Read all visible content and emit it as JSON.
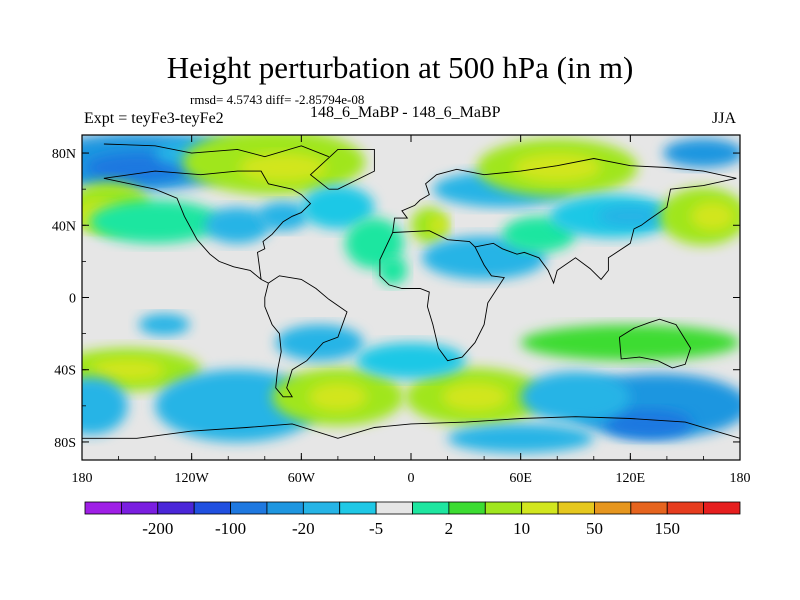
{
  "header": {
    "title": "Height perturbation at 500 hPa (in m)",
    "stats": "rmsd= 4.5743 diff= -2.85794e-08",
    "left_label": "Expt = teyFe3-teyFe2",
    "center_label": "148_6_MaBP - 148_6_MaBP",
    "right_label": "JJA"
  },
  "chart_data": {
    "type": "heatmap",
    "title": "Height perturbation at 500 hPa (in m)",
    "xlim": [
      -180,
      180
    ],
    "ylim": [
      -90,
      90
    ],
    "x_ticks": [
      {
        "value": -180,
        "label": "180"
      },
      {
        "value": -120,
        "label": "120W"
      },
      {
        "value": -60,
        "label": "60W"
      },
      {
        "value": 0,
        "label": "0"
      },
      {
        "value": 60,
        "label": "60E"
      },
      {
        "value": 120,
        "label": "120E"
      },
      {
        "value": 180,
        "label": "180"
      }
    ],
    "y_ticks": [
      {
        "value": 80,
        "label": "80N"
      },
      {
        "value": 40,
        "label": "40N"
      },
      {
        "value": 0,
        "label": "0"
      },
      {
        "value": -40,
        "label": "40S"
      },
      {
        "value": -80,
        "label": "80S"
      }
    ],
    "colorbar": {
      "colors": [
        "#9f1fe6",
        "#7a1ee0",
        "#4a26d8",
        "#2050e0",
        "#1e78e0",
        "#1e96e0",
        "#26b4e6",
        "#1fc8e6",
        "#e6e6e6",
        "#1ee6a0",
        "#3cdc32",
        "#a0e61e",
        "#d2e61e",
        "#e6c81e",
        "#e6961e",
        "#e6641e",
        "#e63c1e",
        "#e61e1e"
      ],
      "labels": [
        {
          "after_index": 1,
          "label": "-200"
        },
        {
          "after_index": 3,
          "label": "-100"
        },
        {
          "after_index": 5,
          "label": "-20"
        },
        {
          "after_index": 7,
          "label": "-5"
        },
        {
          "after_index": 9,
          "label": "2"
        },
        {
          "after_index": 11,
          "label": "10"
        },
        {
          "after_index": 13,
          "label": "50"
        },
        {
          "after_index": 15,
          "label": "150"
        }
      ]
    },
    "regions": [
      {
        "lon": -150,
        "lat": 75,
        "w": 55,
        "h": 16,
        "level": 5
      },
      {
        "lon": -150,
        "lat": 72,
        "w": 28,
        "h": 8,
        "level": 4
      },
      {
        "lon": -115,
        "lat": 80,
        "w": 25,
        "h": 8,
        "level": 6
      },
      {
        "lon": -165,
        "lat": 50,
        "w": 22,
        "h": 14,
        "level": 11
      },
      {
        "lon": -170,
        "lat": 45,
        "w": 14,
        "h": 8,
        "level": 12
      },
      {
        "lon": -140,
        "lat": 42,
        "w": 36,
        "h": 12,
        "level": 9
      },
      {
        "lon": -75,
        "lat": 75,
        "w": 50,
        "h": 18,
        "level": 11
      },
      {
        "lon": -70,
        "lat": 72,
        "w": 24,
        "h": 8,
        "level": 12
      },
      {
        "lon": -95,
        "lat": 40,
        "w": 18,
        "h": 10,
        "level": 6
      },
      {
        "lon": -70,
        "lat": 45,
        "w": 14,
        "h": 8,
        "level": 6
      },
      {
        "lon": -40,
        "lat": 50,
        "w": 20,
        "h": 12,
        "level": 7
      },
      {
        "lon": -20,
        "lat": 30,
        "w": 16,
        "h": 14,
        "level": 9
      },
      {
        "lon": -10,
        "lat": 15,
        "w": 8,
        "h": 8,
        "level": 9
      },
      {
        "lon": 10,
        "lat": 40,
        "w": 10,
        "h": 10,
        "level": 11
      },
      {
        "lon": 15,
        "lat": 40,
        "w": 5,
        "h": 5,
        "level": 12
      },
      {
        "lon": 40,
        "lat": 22,
        "w": 34,
        "h": 12,
        "level": 6
      },
      {
        "lon": 70,
        "lat": 35,
        "w": 20,
        "h": 10,
        "level": 9
      },
      {
        "lon": 50,
        "lat": 60,
        "w": 38,
        "h": 10,
        "level": 6
      },
      {
        "lon": 80,
        "lat": 72,
        "w": 44,
        "h": 16,
        "level": 11
      },
      {
        "lon": 80,
        "lat": 72,
        "w": 24,
        "h": 8,
        "level": 12
      },
      {
        "lon": 110,
        "lat": 45,
        "w": 34,
        "h": 12,
        "level": 7
      },
      {
        "lon": 120,
        "lat": 45,
        "w": 18,
        "h": 6,
        "level": 6
      },
      {
        "lon": 160,
        "lat": 45,
        "w": 24,
        "h": 16,
        "level": 11
      },
      {
        "lon": 165,
        "lat": 45,
        "w": 12,
        "h": 8,
        "level": 12
      },
      {
        "lon": 160,
        "lat": 80,
        "w": 22,
        "h": 8,
        "level": 5
      },
      {
        "lon": -155,
        "lat": -40,
        "w": 40,
        "h": 12,
        "level": 11
      },
      {
        "lon": -155,
        "lat": -40,
        "w": 20,
        "h": 6,
        "level": 12
      },
      {
        "lon": -175,
        "lat": -60,
        "w": 20,
        "h": 16,
        "level": 6
      },
      {
        "lon": -135,
        "lat": -15,
        "w": 14,
        "h": 6,
        "level": 6
      },
      {
        "lon": -95,
        "lat": -60,
        "w": 45,
        "h": 20,
        "level": 6
      },
      {
        "lon": -40,
        "lat": -55,
        "w": 36,
        "h": 16,
        "level": 11
      },
      {
        "lon": -40,
        "lat": -55,
        "w": 16,
        "h": 8,
        "level": 12
      },
      {
        "lon": -50,
        "lat": -25,
        "w": 24,
        "h": 10,
        "level": 6
      },
      {
        "lon": 35,
        "lat": -55,
        "w": 38,
        "h": 16,
        "level": 11
      },
      {
        "lon": 35,
        "lat": -55,
        "w": 18,
        "h": 8,
        "level": 12
      },
      {
        "lon": 0,
        "lat": -35,
        "w": 30,
        "h": 10,
        "level": 7
      },
      {
        "lon": 120,
        "lat": -25,
        "w": 60,
        "h": 10,
        "level": 10
      },
      {
        "lon": 135,
        "lat": -60,
        "w": 50,
        "h": 18,
        "level": 5
      },
      {
        "lon": 130,
        "lat": -70,
        "w": 24,
        "h": 8,
        "level": 4
      },
      {
        "lon": 90,
        "lat": -55,
        "w": 30,
        "h": 14,
        "level": 6
      },
      {
        "lon": 60,
        "lat": -78,
        "w": 40,
        "h": 8,
        "level": 6
      }
    ],
    "outlines": [
      [
        [
          -168,
          85
        ],
        [
          -140,
          84
        ],
        [
          -120,
          80
        ],
        [
          -95,
          82
        ],
        [
          -80,
          78
        ],
        [
          -60,
          84
        ],
        [
          -45,
          78
        ]
      ],
      [
        [
          -168,
          66
        ],
        [
          -140,
          60
        ],
        [
          -128,
          55
        ],
        [
          -124,
          45
        ],
        [
          -117,
          32
        ],
        [
          -110,
          24
        ],
        [
          -105,
          20
        ],
        [
          -97,
          17
        ],
        [
          -88,
          15
        ],
        [
          -82,
          10
        ],
        [
          -78,
          8
        ]
      ],
      [
        [
          -78,
          8
        ],
        [
          -80,
          0
        ],
        [
          -80,
          -5
        ],
        [
          -76,
          -15
        ],
        [
          -72,
          -20
        ],
        [
          -71,
          -30
        ],
        [
          -73,
          -40
        ],
        [
          -74,
          -50
        ],
        [
          -70,
          -55
        ],
        [
          -65,
          -55
        ],
        [
          -68,
          -50
        ],
        [
          -65,
          -40
        ],
        [
          -57,
          -35
        ],
        [
          -48,
          -25
        ],
        [
          -40,
          -22
        ],
        [
          -35,
          -8
        ],
        [
          -45,
          -1
        ],
        [
          -52,
          5
        ],
        [
          -60,
          10
        ],
        [
          -72,
          12
        ],
        [
          -78,
          8
        ]
      ],
      [
        [
          -82,
          10
        ],
        [
          -84,
          25
        ],
        [
          -80,
          27
        ],
        [
          -81,
          31
        ],
        [
          -76,
          35
        ],
        [
          -70,
          42
        ],
        [
          -65,
          45
        ],
        [
          -60,
          47
        ],
        [
          -55,
          52
        ],
        [
          -60,
          57
        ],
        [
          -65,
          60
        ],
        [
          -78,
          63
        ],
        [
          -82,
          70
        ],
        [
          -95,
          70
        ],
        [
          -115,
          68
        ],
        [
          -140,
          70
        ],
        [
          -168,
          66
        ]
      ],
      [
        [
          -10,
          36
        ],
        [
          -9,
          44
        ],
        [
          -2,
          44
        ],
        [
          -5,
          48
        ],
        [
          2,
          51
        ],
        [
          5,
          54
        ],
        [
          10,
          57
        ],
        [
          8,
          63
        ],
        [
          14,
          68
        ],
        [
          25,
          71
        ],
        [
          40,
          68
        ],
        [
          60,
          70
        ],
        [
          80,
          73
        ],
        [
          100,
          77
        ],
        [
          120,
          73
        ],
        [
          140,
          72
        ],
        [
          160,
          70
        ],
        [
          178,
          66
        ]
      ],
      [
        [
          -10,
          36
        ],
        [
          -17,
          21
        ],
        [
          -17,
          12
        ],
        [
          -12,
          7
        ],
        [
          -5,
          5
        ],
        [
          5,
          5
        ],
        [
          10,
          3
        ],
        [
          9,
          -5
        ],
        [
          12,
          -15
        ],
        [
          15,
          -28
        ],
        [
          20,
          -35
        ],
        [
          28,
          -33
        ],
        [
          35,
          -25
        ],
        [
          40,
          -15
        ],
        [
          42,
          -3
        ],
        [
          51,
          11
        ],
        [
          44,
          12
        ],
        [
          40,
          18
        ],
        [
          35,
          28
        ],
        [
          32,
          31
        ],
        [
          20,
          32
        ],
        [
          10,
          37
        ],
        [
          -10,
          36
        ]
      ],
      [
        [
          35,
          28
        ],
        [
          45,
          30
        ],
        [
          50,
          27
        ],
        [
          58,
          24
        ],
        [
          62,
          25
        ],
        [
          70,
          22
        ],
        [
          75,
          15
        ],
        [
          78,
          8
        ],
        [
          80,
          15
        ],
        [
          90,
          22
        ],
        [
          98,
          16
        ],
        [
          104,
          10
        ],
        [
          108,
          15
        ],
        [
          108,
          22
        ],
        [
          120,
          30
        ],
        [
          122,
          38
        ],
        [
          126,
          40
        ],
        [
          130,
          43
        ],
        [
          140,
          50
        ],
        [
          142,
          60
        ],
        [
          160,
          62
        ],
        [
          178,
          66
        ]
      ],
      [
        [
          114,
          -22
        ],
        [
          115,
          -34
        ],
        [
          125,
          -33
        ],
        [
          135,
          -35
        ],
        [
          143,
          -39
        ],
        [
          150,
          -37
        ],
        [
          153,
          -28
        ],
        [
          145,
          -15
        ],
        [
          136,
          -12
        ],
        [
          130,
          -14
        ],
        [
          122,
          -17
        ],
        [
          114,
          -22
        ]
      ],
      [
        [
          -180,
          -78
        ],
        [
          -150,
          -78
        ],
        [
          -120,
          -74
        ],
        [
          -90,
          -72
        ],
        [
          -65,
          -70
        ],
        [
          -40,
          -78
        ],
        [
          -20,
          -72
        ],
        [
          0,
          -70
        ],
        [
          30,
          -69
        ],
        [
          60,
          -67
        ],
        [
          90,
          -66
        ],
        [
          120,
          -67
        ],
        [
          150,
          -69
        ],
        [
          170,
          -75
        ],
        [
          180,
          -78
        ]
      ],
      [
        [
          -45,
          60
        ],
        [
          -55,
          68
        ],
        [
          -40,
          82
        ],
        [
          -20,
          82
        ],
        [
          -20,
          70
        ],
        [
          -40,
          60
        ],
        [
          -45,
          60
        ]
      ]
    ]
  }
}
